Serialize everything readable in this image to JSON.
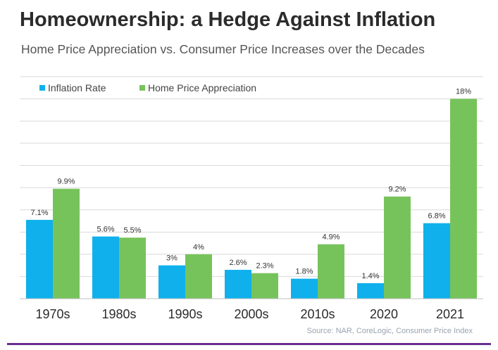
{
  "title": "Homeownership: a Hedge Against Inflation",
  "subtitle": "Home Price Appreciation vs. Consumer Price Increases over the Decades",
  "source": "Source: NAR, CoreLogic, Consumer Price Index",
  "colors": {
    "inflation": "#0fb0ec",
    "home": "#77c35b",
    "grid": "#d9d9d9",
    "axis": "#bfbfbf",
    "accent_rule": "#6a2e8f"
  },
  "chart_data": {
    "type": "bar",
    "categories": [
      "1970s",
      "1980s",
      "1990s",
      "2000s",
      "2010s",
      "2020",
      "2021"
    ],
    "series": [
      {
        "name": "Inflation Rate",
        "values": [
          7.1,
          5.6,
          3,
          2.6,
          1.8,
          1.4,
          6.8
        ],
        "labels": [
          "7.1%",
          "5.6%",
          "3%",
          "2.6%",
          "1.8%",
          "1.4%",
          "6.8%"
        ]
      },
      {
        "name": "Home Price Appreciation",
        "values": [
          9.9,
          5.5,
          4,
          2.3,
          4.9,
          9.2,
          18
        ],
        "labels": [
          "9.9%",
          "5.5%",
          "4%",
          "2.3%",
          "4.9%",
          "9.2%",
          "18%"
        ]
      }
    ],
    "ylim": [
      0,
      20
    ],
    "grid": true,
    "legend": "top-left"
  }
}
